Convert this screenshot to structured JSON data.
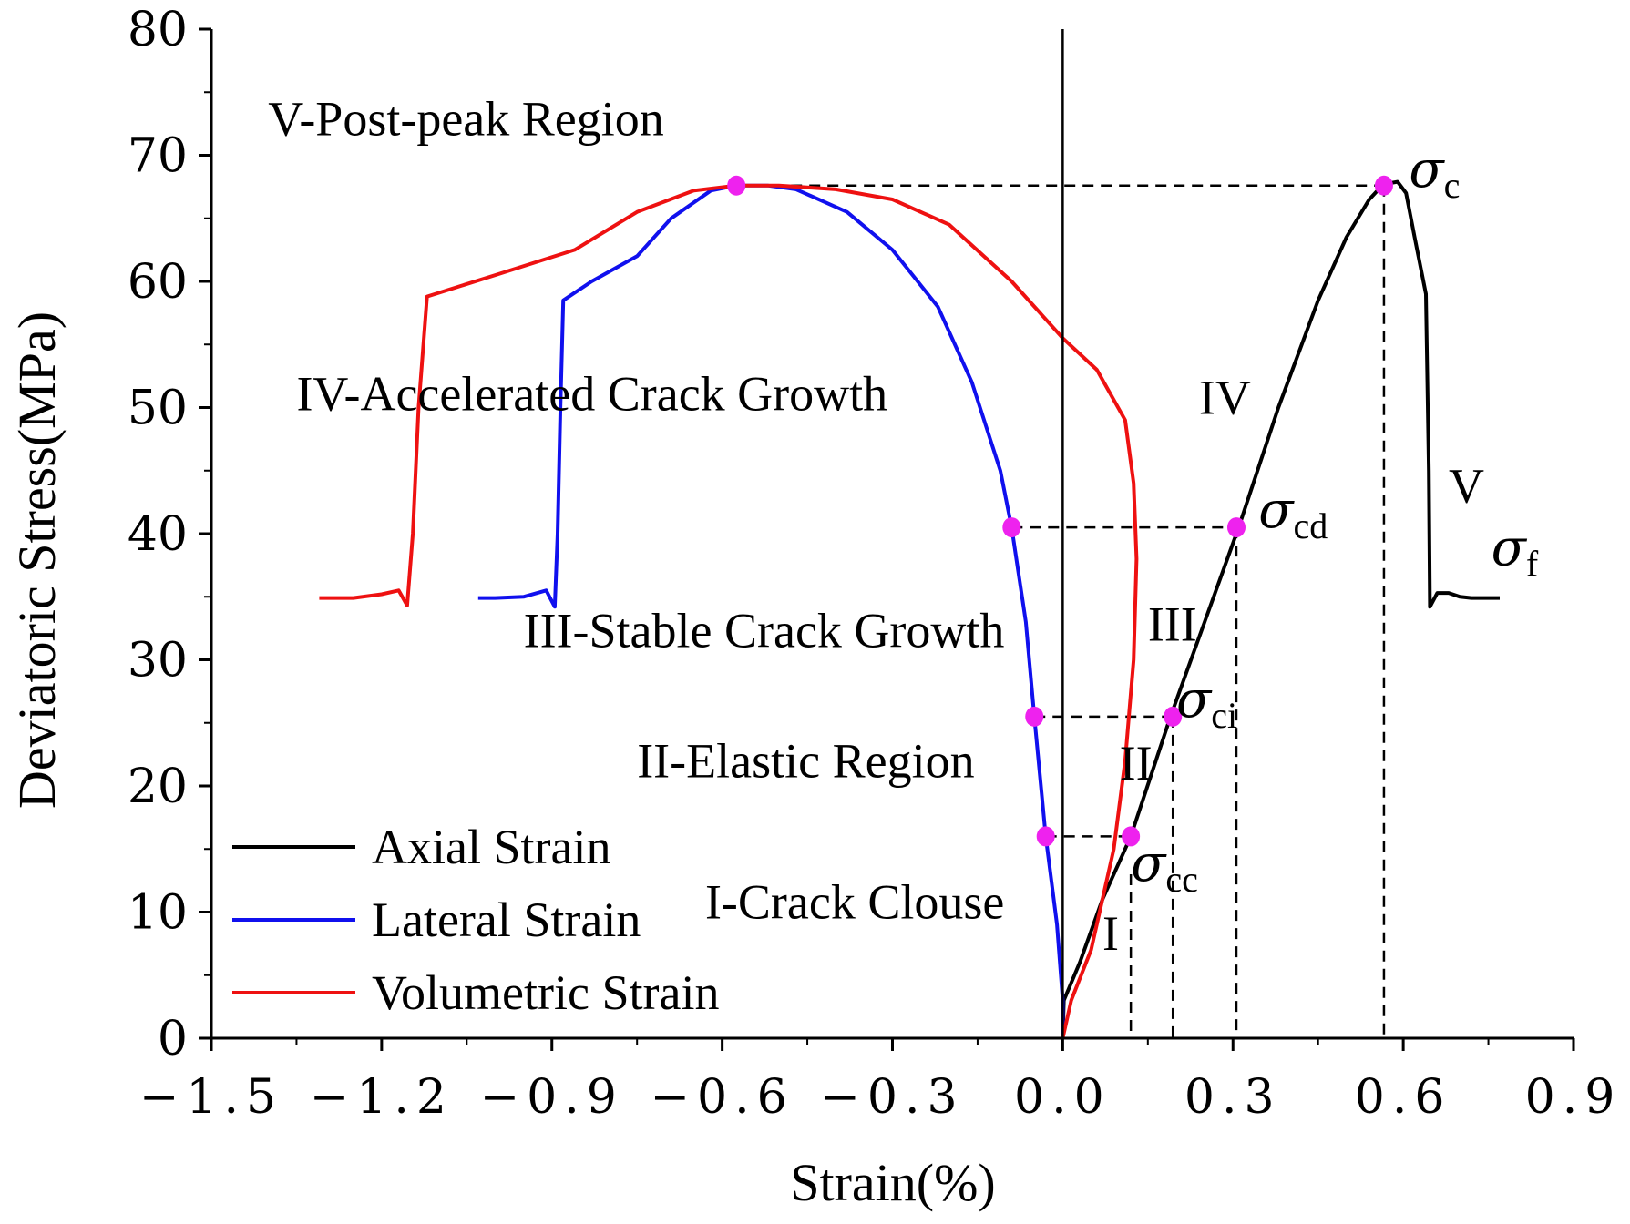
{
  "chart_data": {
    "type": "line",
    "xlabel": "Strain(%)",
    "ylabel": "Deviatoric Stress(MPa)",
    "xlim": [
      -1.5,
      0.9
    ],
    "ylim": [
      0,
      80
    ],
    "xticks": [
      -1.5,
      -1.2,
      -0.9,
      -0.6,
      -0.3,
      0.0,
      0.3,
      0.6,
      0.9
    ],
    "xtick_labels": [
      "−1.5",
      "−1.2",
      "−0.9",
      "−0.6",
      "−0.3",
      "0.0",
      "0.3",
      "0.6",
      "0.9"
    ],
    "yticks": [
      0,
      10,
      20,
      30,
      40,
      50,
      60,
      70,
      80
    ],
    "ytick_labels": [
      "0",
      "10",
      "20",
      "30",
      "40",
      "50",
      "60",
      "70",
      "80"
    ],
    "grid": false,
    "legend_position": "bottom-left",
    "series": [
      {
        "name": "Axial Strain",
        "color": "#000000",
        "points": [
          [
            0.0,
            0
          ],
          [
            0.002,
            3
          ],
          [
            0.03,
            6
          ],
          [
            0.07,
            11
          ],
          [
            0.12,
            16
          ],
          [
            0.19,
            25.5
          ],
          [
            0.25,
            33
          ],
          [
            0.31,
            40.5
          ],
          [
            0.38,
            50
          ],
          [
            0.45,
            58.5
          ],
          [
            0.5,
            63.5
          ],
          [
            0.54,
            66.5
          ],
          [
            0.565,
            67.7
          ],
          [
            0.59,
            67.9
          ],
          [
            0.605,
            67
          ],
          [
            0.62,
            63.5
          ],
          [
            0.64,
            59
          ],
          [
            0.645,
            45
          ],
          [
            0.647,
            34.2
          ],
          [
            0.66,
            35.3
          ],
          [
            0.68,
            35.3
          ],
          [
            0.7,
            35.0
          ],
          [
            0.72,
            34.9
          ],
          [
            0.75,
            34.9
          ],
          [
            0.77,
            34.9
          ]
        ]
      },
      {
        "name": "Lateral Strain",
        "color": "#1010ee",
        "points": [
          [
            0.0,
            0
          ],
          [
            0.0,
            3
          ],
          [
            -0.01,
            9
          ],
          [
            -0.03,
            16
          ],
          [
            -0.05,
            25.5
          ],
          [
            -0.065,
            33
          ],
          [
            -0.09,
            40.5
          ],
          [
            -0.11,
            45
          ],
          [
            -0.16,
            52
          ],
          [
            -0.22,
            58
          ],
          [
            -0.3,
            62.5
          ],
          [
            -0.38,
            65.5
          ],
          [
            -0.47,
            67.3
          ],
          [
            -0.52,
            67.6
          ],
          [
            -0.575,
            67.6
          ],
          [
            -0.62,
            67.2
          ],
          [
            -0.69,
            65
          ],
          [
            -0.75,
            62
          ],
          [
            -0.83,
            60
          ],
          [
            -0.88,
            58.5
          ],
          [
            -0.885,
            50
          ],
          [
            -0.89,
            40
          ],
          [
            -0.895,
            34.2
          ],
          [
            -0.91,
            35.5
          ],
          [
            -0.95,
            35.0
          ],
          [
            -1.0,
            34.9
          ],
          [
            -1.03,
            34.9
          ]
        ]
      },
      {
        "name": "Volumetric Strain",
        "color": "#ee1111",
        "points": [
          [
            0.0,
            0
          ],
          [
            0.015,
            3
          ],
          [
            0.05,
            7
          ],
          [
            0.09,
            15
          ],
          [
            0.11,
            22
          ],
          [
            0.125,
            30
          ],
          [
            0.13,
            38
          ],
          [
            0.125,
            44
          ],
          [
            0.11,
            49
          ],
          [
            0.06,
            53
          ],
          [
            0.0,
            55.5
          ],
          [
            -0.09,
            60
          ],
          [
            -0.2,
            64.5
          ],
          [
            -0.3,
            66.5
          ],
          [
            -0.4,
            67.3
          ],
          [
            -0.5,
            67.6
          ],
          [
            -0.575,
            67.6
          ],
          [
            -0.65,
            67.2
          ],
          [
            -0.75,
            65.5
          ],
          [
            -0.86,
            62.5
          ],
          [
            -1.0,
            60.5
          ],
          [
            -1.12,
            58.8
          ],
          [
            -1.135,
            50
          ],
          [
            -1.145,
            40
          ],
          [
            -1.155,
            34.3
          ],
          [
            -1.17,
            35.5
          ],
          [
            -1.2,
            35.2
          ],
          [
            -1.25,
            34.9
          ],
          [
            -1.31,
            34.9
          ]
        ]
      }
    ],
    "markers": {
      "color": "#ee22ee",
      "points": [
        [
          -0.575,
          67.6
        ],
        [
          0.566,
          67.6
        ],
        [
          -0.09,
          40.5
        ],
        [
          0.306,
          40.5
        ],
        [
          -0.05,
          25.5
        ],
        [
          0.194,
          25.5
        ],
        [
          -0.03,
          16
        ],
        [
          0.12,
          16
        ]
      ]
    },
    "dashed_lines": [
      [
        [
          -0.575,
          67.6
        ],
        [
          0.566,
          67.6
        ]
      ],
      [
        [
          0.566,
          67.6
        ],
        [
          0.566,
          0
        ]
      ],
      [
        [
          -0.09,
          40.5
        ],
        [
          0.306,
          40.5
        ]
      ],
      [
        [
          0.306,
          40.5
        ],
        [
          0.306,
          0
        ]
      ],
      [
        [
          -0.05,
          25.5
        ],
        [
          0.194,
          25.5
        ]
      ],
      [
        [
          0.194,
          25.5
        ],
        [
          0.194,
          0
        ]
      ],
      [
        [
          -0.03,
          16
        ],
        [
          0.12,
          16
        ]
      ],
      [
        [
          0.12,
          13
        ],
        [
          0.12,
          0
        ]
      ]
    ],
    "vertical_zero_line": {
      "x": 0.0,
      "from": 0,
      "to": 80
    },
    "region_labels": [
      {
        "text": "V-Post-peak Region",
        "x": -1.4,
        "y": 71.6
      },
      {
        "text": "IV-Accelerated Crack Growth",
        "x": -1.35,
        "y": 49.8
      },
      {
        "text": "III-Stable Crack Growth",
        "x": -0.95,
        "y": 31.0
      },
      {
        "text": "II-Elastic Region",
        "x": -0.75,
        "y": 20.7
      },
      {
        "text": "I-Crack Clouse",
        "x": -0.63,
        "y": 9.5
      }
    ],
    "zone_labels": [
      {
        "text": "IV",
        "x": 0.24,
        "y": 49.5
      },
      {
        "text": "III",
        "x": 0.15,
        "y": 31.5
      },
      {
        "text": "II",
        "x": 0.1,
        "y": 20.5
      },
      {
        "text": "I",
        "x": 0.07,
        "y": 7.0
      },
      {
        "text": "V",
        "x": 0.68,
        "y": 42.5
      }
    ],
    "stress_labels": [
      {
        "symbol": "σ",
        "sub": "c",
        "x": 0.61,
        "y": 67.5
      },
      {
        "symbol": "σ",
        "sub": "cd",
        "x": 0.345,
        "y": 40.5
      },
      {
        "symbol": "σ",
        "sub": "ci",
        "x": 0.2,
        "y": 25.5
      },
      {
        "symbol": "σ",
        "sub": "cc",
        "x": 0.12,
        "y": 12.5
      },
      {
        "symbol": "σ",
        "sub": "f",
        "x": 0.755,
        "y": 37.5
      }
    ]
  }
}
